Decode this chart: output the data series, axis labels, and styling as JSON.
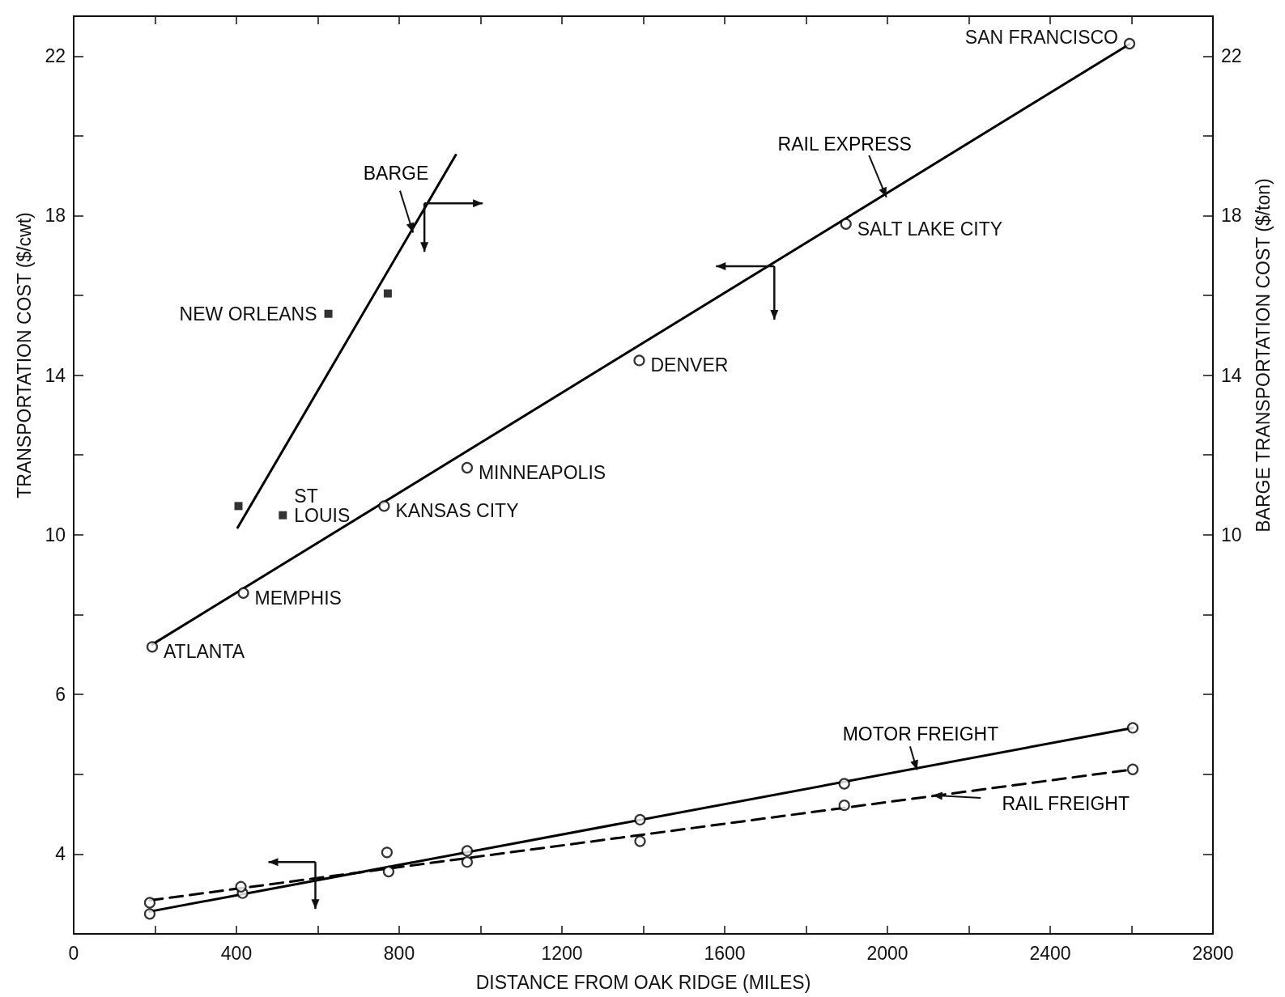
{
  "chart_data": [
    {
      "type": "scatter",
      "ylabel": "TRANSPORTATION COST ($/cwt)",
      "y2label": "BARGE TRANSPORTATION COST ($/ton)",
      "xlim": [
        0,
        2800
      ],
      "xticks": [
        {
          "value": 200,
          "label": null
        },
        {
          "value": 400,
          "label": null
        },
        {
          "value": 600,
          "label": null
        },
        {
          "value": 800,
          "label": null
        },
        {
          "value": 1000,
          "label": null
        },
        {
          "value": 1200,
          "label": null
        },
        {
          "value": 1400,
          "label": null
        },
        {
          "value": 1600,
          "label": null
        },
        {
          "value": 1800,
          "label": null
        },
        {
          "value": 2000,
          "label": null
        },
        {
          "value": 2200,
          "label": null
        },
        {
          "value": 2400,
          "label": null
        },
        {
          "value": 2600,
          "label": null
        }
      ],
      "ylim": [
        6,
        23
      ],
      "yticks": [
        {
          "value": 8,
          "label": null
        },
        10,
        {
          "value": 12,
          "label": null
        },
        14,
        {
          "value": 16,
          "label": null
        },
        18,
        {
          "value": 20,
          "label": null
        },
        22
      ],
      "y2lim": [
        6,
        23
      ],
      "y2ticks": [
        {
          "value": 8,
          "label": null
        },
        10,
        {
          "value": 12,
          "label": null
        },
        14,
        {
          "value": 16,
          "label": null
        },
        18,
        {
          "value": 20,
          "label": null
        },
        22
      ],
      "tick_labels": "y",
      "grid": false,
      "legend": false,
      "series": [
        {
          "marker": "circle",
          "color": "#000000",
          "x": [
            193,
            417,
            763,
            967,
            1390,
            1898,
            2595
          ],
          "values": [
            7.19,
            8.54,
            10.72,
            11.68,
            14.37,
            17.79,
            22.31
          ]
        },
        {
          "type": "line",
          "name": "RAIL EXPRESS",
          "marker": "none",
          "line_style": "solid",
          "color": "#000000",
          "x": [
            193,
            2595
          ],
          "values": [
            7.25,
            22.3
          ]
        },
        {
          "marker": "square",
          "axis": "y2",
          "color": "#000000",
          "x": [
            405,
            514,
            626,
            772
          ],
          "values": [
            10.72,
            10.49,
            15.54,
            16.05
          ]
        },
        {
          "type": "line",
          "name": "BARGE",
          "axis": "y2",
          "marker": "none",
          "line_style": "solid",
          "color": "#000000",
          "x": [
            403,
            939
          ],
          "values": [
            10.18,
            19.52
          ]
        }
      ],
      "annotations": [
        {
          "text": "ATLANTA",
          "x": 193,
          "y": 7.19
        },
        {
          "text": "MEMPHIS",
          "x": 417,
          "y": 8.54
        },
        {
          "text": "KANSAS CITY",
          "x": 763,
          "y": 10.72
        },
        {
          "text": "MINNEAPOLIS",
          "x": 967,
          "y": 11.68
        },
        {
          "text": "DENVER",
          "x": 1390,
          "y": 14.37
        },
        {
          "text": "SALT LAKE CITY",
          "x": 1898,
          "y": 17.79
        },
        {
          "text": "SAN FRANCISCO",
          "x": 2595,
          "y": 22.31
        },
        {
          "text": "NEW ORLEANS",
          "x": 626,
          "y": 15.54
        },
        {
          "text": "ST\nLOUIS",
          "x": 514,
          "y": 10.49
        }
      ]
    },
    {
      "type": "scatter",
      "xlabel": "DISTANCE FROM OAK RIDGE (MILES)",
      "xlim": [
        0,
        2800
      ],
      "xticks": [
        0,
        {
          "value": 200,
          "label": null
        },
        400,
        {
          "value": 600,
          "label": null
        },
        800,
        {
          "value": 1000,
          "label": null
        },
        1200,
        {
          "value": 1400,
          "label": null
        },
        1600,
        {
          "value": 1800,
          "label": null
        },
        2000,
        {
          "value": 2200,
          "label": null
        },
        2400,
        {
          "value": 2600,
          "label": null
        },
        2800
      ],
      "ylim": [
        3,
        6
      ],
      "yticks": [
        4,
        {
          "value": 5,
          "label": null
        },
        6
      ],
      "grid": false,
      "legend": false,
      "series": [
        {
          "marker": "circle",
          "color": "#000000",
          "x": [
            187,
            415,
            770,
            967,
            1392,
            1894,
            2603
          ],
          "values": [
            3.25,
            3.51,
            4.02,
            4.04,
            4.43,
            4.88,
            5.58
          ]
        },
        {
          "type": "line",
          "name": "MOTOR FREIGHT",
          "marker": "none",
          "line_style": "solid",
          "color": "#000000",
          "x": [
            187,
            2603
          ],
          "values": [
            3.28,
            5.58
          ]
        },
        {
          "marker": "circle",
          "color": "#000000",
          "x": [
            187,
            411,
            774,
            967,
            1392,
            1894,
            2603
          ],
          "values": [
            3.39,
            3.59,
            3.78,
            3.9,
            4.16,
            4.61,
            5.06
          ]
        },
        {
          "type": "line",
          "name": "RAIL FREIGHT",
          "marker": "none",
          "line_style": "dashed",
          "color": "#000000",
          "x": [
            187,
            2603
          ],
          "values": [
            3.42,
            5.06
          ]
        }
      ]
    }
  ]
}
